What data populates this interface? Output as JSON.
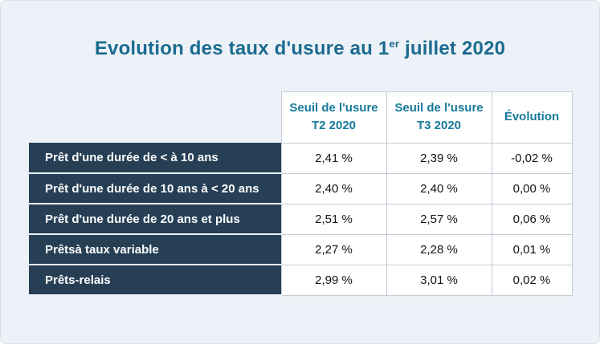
{
  "title": {
    "part1": "Evolution des taux d'usure au 1",
    "sup": "er",
    "part2": " juillet 2020"
  },
  "table": {
    "columns": [
      {
        "line1": "Seuil de l'usure",
        "line2": "T2 2020"
      },
      {
        "line1": "Seuil de l'usure",
        "line2": "T3 2020"
      },
      {
        "line1": "Évolution",
        "line2": ""
      }
    ],
    "rows": [
      {
        "label": "Prêt d'une durée de < à 10 ans",
        "t2": "2,41 %",
        "t3": "2,39 %",
        "evolution": "-0,02 %"
      },
      {
        "label": "Prêt d'une durée de 10 ans à < 20 ans",
        "t2": "2,40 %",
        "t3": "2,40 %",
        "evolution": "0,00 %"
      },
      {
        "label": "Prêt d'une durée de 20 ans et plus",
        "t2": "2,51 %",
        "t3": "2,57 %",
        "evolution": "0,06 %"
      },
      {
        "label": "Prêtsà taux variable",
        "t2": "2,27 %",
        "t3": "2,28 %",
        "evolution": "0,01 %"
      },
      {
        "label": "Prêts-relais",
        "t2": "2,99 %",
        "t3": "3,01 %",
        "evolution": "0,02 %"
      }
    ]
  },
  "colors": {
    "background": "#edf2f8",
    "title_text": "#1b6b90",
    "header_text": "#177a9c",
    "row_label_background": "#263f55",
    "cell_border": "#c3ccd6"
  },
  "chart_data": {
    "type": "table",
    "title": "Evolution des taux d'usure au 1er juillet 2020",
    "columns": [
      "",
      "Seuil de l'usure T2 2020",
      "Seuil de l'usure T3 2020",
      "Évolution"
    ],
    "rows": [
      [
        "Prêt d'une durée de < à 10 ans",
        "2,41 %",
        "2,39 %",
        "-0,02 %"
      ],
      [
        "Prêt d'une durée de 10 ans à < 20 ans",
        "2,40 %",
        "2,40 %",
        "0,00 %"
      ],
      [
        "Prêt d'une durée de 20 ans et plus",
        "2,51 %",
        "2,57 %",
        "0,06 %"
      ],
      [
        "Prêtsà taux variable",
        "2,27 %",
        "2,28 %",
        "0,01 %"
      ],
      [
        "Prêts-relais",
        "2,99 %",
        "3,01 %",
        "0,02 %"
      ]
    ]
  }
}
